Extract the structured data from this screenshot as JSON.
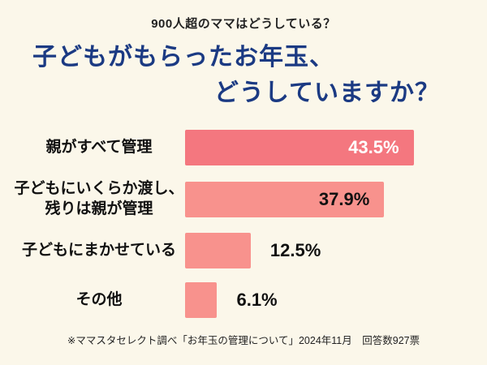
{
  "page": {
    "bg_color": "#FBF7EA",
    "title_color": "#1B3A83",
    "eyebrow": "900人超のママはどうしている？",
    "title_line1": "子どもがもらったお年玉、",
    "title_line2": "どうしていますか？",
    "footnote": "※ママスタセレクト調べ「お年玉の管理について」2024年11月　回答数927票"
  },
  "chart_data": {
    "type": "bar",
    "orientation": "horizontal",
    "title": "子どもがもらったお年玉、どうしていますか？",
    "subtitle": "900人超のママはどうしている？",
    "categories": [
      "親がすべて管理",
      "子どもにいくらか渡し、残りは親が管理",
      "子どもにまかせている",
      "その他"
    ],
    "values": [
      43.5,
      37.9,
      12.5,
      6.1
    ],
    "xlim": [
      0,
      55
    ],
    "grid": "off",
    "legend": "none",
    "bars": [
      {
        "label_lines": [
          "親がすべて管理"
        ],
        "value": 43.5,
        "value_label": "43.5%",
        "value_label_position": "inside",
        "value_label_color": "#FFFFFF",
        "bar_color": "#F4777F"
      },
      {
        "label_lines": [
          "子どもにいくらか渡し、",
          "残りは親が管理"
        ],
        "value": 37.9,
        "value_label": "37.9%",
        "value_label_position": "inside",
        "value_label_color": "#111111",
        "bar_color": "#F8928D"
      },
      {
        "label_lines": [
          "子どもにまかせている"
        ],
        "value": 12.5,
        "value_label": "12.5%",
        "value_label_position": "outside",
        "value_label_color": "#111111",
        "bar_color": "#F8928D"
      },
      {
        "label_lines": [
          "その他"
        ],
        "value": 6.1,
        "value_label": "6.1%",
        "value_label_position": "outside",
        "value_label_color": "#111111",
        "bar_color": "#F8928D"
      }
    ]
  }
}
